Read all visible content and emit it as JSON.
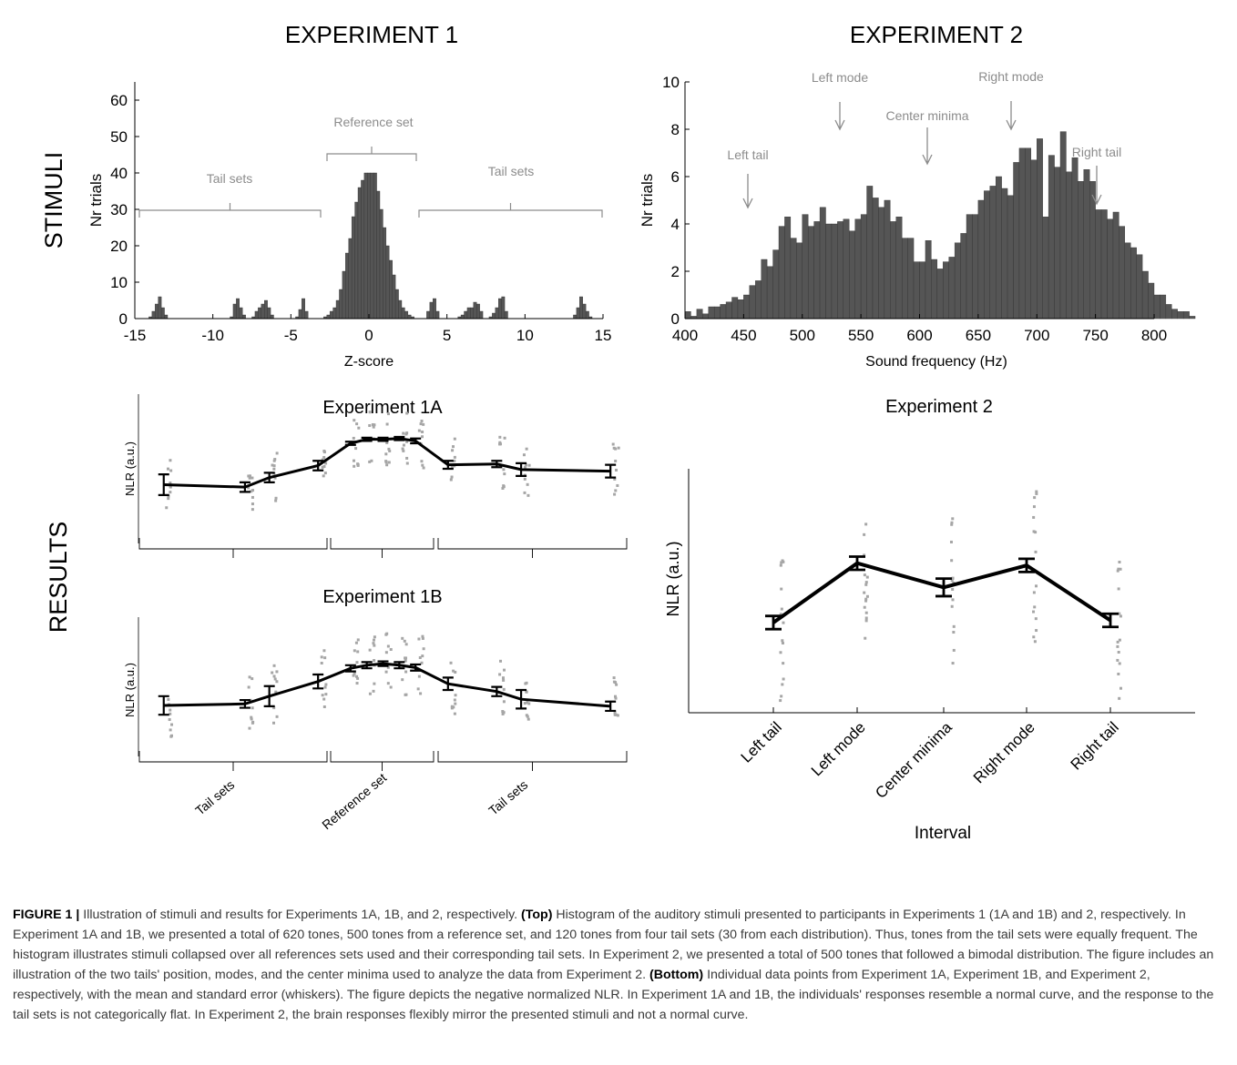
{
  "figure": {
    "exp1_title": "EXPERIMENT 1",
    "exp2_title": "EXPERIMENT 2",
    "row_stimuli": "STIMULI",
    "row_results": "RESULTS"
  },
  "caption": {
    "label": "FIGURE 1 |",
    "p1": " Illustration of stimuli and results for Experiments 1A, 1B, and 2, respectively. ",
    "top": "(Top)",
    "p2": " Histogram of the auditory stimuli presented to participants in Experiments 1 (1A and 1B) and 2, respectively. In Experiment 1A and 1B, we presented a total of 620 tones, 500 tones from a reference set, and 120 tones from four tail sets (30 from each distribution). Thus, tones from the tail sets were equally frequent. The histogram illustrates stimuli collapsed over all references sets used and their corresponding tail sets. In Experiment 2, we presented a total of 500 tones that followed a bimodal distribution. The figure includes an illustration of the two tails' position, modes, and the center minima used to analyze the data from Experiment 2. ",
    "bottom": "(Bottom)",
    "p3": " Individual data points from Experiment 1A, Experiment 1B, and Experiment 2, respectively, with the mean and standard error (whiskers). The figure depicts the negative normalized NLR. In Experiment 1A and 1B, the individuals' responses resemble a normal curve, and the response to the tail sets is not categorically flat. In Experiment 2, the brain responses flexibly mirror the presented stimuli and not a normal curve."
  },
  "chart_data": [
    {
      "type": "bar",
      "xlabel": "Z-score",
      "ylabel": "Nr trials",
      "xlim": [
        -15,
        15
      ],
      "ylim": [
        0,
        65
      ],
      "xticks": [
        -15,
        -10,
        -5,
        0,
        5,
        10,
        15
      ],
      "yticks": [
        0,
        10,
        20,
        30,
        40,
        50,
        60
      ],
      "annotations": {
        "reference": "Reference set",
        "tails_left": "Tail sets",
        "tails_right": "Tail sets"
      },
      "bin_width": 0.2,
      "bins": [
        [
          -14.0,
          0.5
        ],
        [
          -13.8,
          2
        ],
        [
          -13.6,
          4
        ],
        [
          -13.4,
          6
        ],
        [
          -13.2,
          3
        ],
        [
          -13.0,
          1
        ],
        [
          -8.8,
          0.5
        ],
        [
          -8.6,
          4
        ],
        [
          -8.4,
          5.5
        ],
        [
          -8.2,
          3
        ],
        [
          -8.0,
          1
        ],
        [
          -7.4,
          0.5
        ],
        [
          -7.2,
          2
        ],
        [
          -7.0,
          3
        ],
        [
          -6.8,
          4
        ],
        [
          -6.6,
          5
        ],
        [
          -6.4,
          3
        ],
        [
          -6.2,
          1
        ],
        [
          -4.6,
          0.5
        ],
        [
          -4.4,
          2.5
        ],
        [
          -4.2,
          5.5
        ],
        [
          -4.0,
          2
        ],
        [
          -2.8,
          0.5
        ],
        [
          -2.6,
          1
        ],
        [
          -2.4,
          2
        ],
        [
          -2.2,
          3
        ],
        [
          -2.0,
          5
        ],
        [
          -1.8,
          8
        ],
        [
          -1.6,
          13
        ],
        [
          -1.4,
          18
        ],
        [
          -1.2,
          22
        ],
        [
          -1.0,
          28
        ],
        [
          -0.8,
          32
        ],
        [
          -0.6,
          36
        ],
        [
          -0.4,
          38
        ],
        [
          -0.2,
          40
        ],
        [
          0.0,
          40
        ],
        [
          0.2,
          40
        ],
        [
          0.4,
          40
        ],
        [
          0.6,
          35
        ],
        [
          0.8,
          30
        ],
        [
          1.0,
          25
        ],
        [
          1.2,
          20
        ],
        [
          1.4,
          16
        ],
        [
          1.6,
          12
        ],
        [
          1.8,
          8
        ],
        [
          2.0,
          5
        ],
        [
          2.2,
          3
        ],
        [
          2.4,
          2
        ],
        [
          2.6,
          1
        ],
        [
          2.8,
          0.5
        ],
        [
          3.8,
          2
        ],
        [
          4.0,
          4.5
        ],
        [
          4.2,
          5.5
        ],
        [
          4.4,
          2
        ],
        [
          5.8,
          0.5
        ],
        [
          6.0,
          1
        ],
        [
          6.2,
          2
        ],
        [
          6.4,
          3
        ],
        [
          6.6,
          3
        ],
        [
          6.8,
          4.5
        ],
        [
          7.0,
          4
        ],
        [
          7.2,
          2
        ],
        [
          7.8,
          0.5
        ],
        [
          8.0,
          1.5
        ],
        [
          8.2,
          3
        ],
        [
          8.4,
          5.5
        ],
        [
          8.6,
          6
        ],
        [
          8.8,
          2
        ],
        [
          13.2,
          1
        ],
        [
          13.4,
          3
        ],
        [
          13.6,
          6
        ],
        [
          13.8,
          4
        ],
        [
          14.0,
          2
        ],
        [
          14.2,
          0.5
        ]
      ]
    },
    {
      "type": "bar",
      "xlabel": "Sound frequency (Hz)",
      "ylabel": "Nr trials",
      "xlim": [
        400,
        800
      ],
      "ylim": [
        0,
        10
      ],
      "xticks": [
        400,
        450,
        500,
        550,
        600,
        650,
        700,
        750,
        800
      ],
      "yticks": [
        0,
        2,
        4,
        6,
        8,
        10
      ],
      "bin_width": 5,
      "bin_start": 402.5,
      "values": [
        0.3,
        0.1,
        0.4,
        0.2,
        0.5,
        0.5,
        0.6,
        0.7,
        0.9,
        0.8,
        1.0,
        1.4,
        1.6,
        2.5,
        2.2,
        2.9,
        3.9,
        4.3,
        3.4,
        3.2,
        4.4,
        3.9,
        4.1,
        4.7,
        4.0,
        4.0,
        4.1,
        4.2,
        3.7,
        4.2,
        4.4,
        5.6,
        5.1,
        4.7,
        5.0,
        4.1,
        4.3,
        3.4,
        3.4,
        2.4,
        2.4,
        3.3,
        2.5,
        2.1,
        2.4,
        2.6,
        3.2,
        3.6,
        4.4,
        4.4,
        5.0,
        5.4,
        5.6,
        6.0,
        5.5,
        5.2,
        6.6,
        7.2,
        7.2,
        6.7,
        7.6,
        4.3,
        6.9,
        6.4,
        7.9,
        6.2,
        6.8,
        5.8,
        6.3,
        5.8,
        4.6,
        4.6,
        4.2,
        4.5,
        3.9,
        3.2,
        3.0,
        2.7,
        2.0,
        1.5,
        1.0,
        1.0,
        0.6,
        0.4,
        0.3,
        0.3,
        0.1,
        0.0,
        0.0,
        0.0,
        0.0,
        0.0,
        0.0,
        0.0,
        0.0,
        0.0,
        0.0,
        0.2
      ],
      "annotations": [
        "Left tail",
        "Left mode",
        "Center minima",
        "Right mode",
        "Right tail"
      ]
    },
    {
      "type": "line",
      "title": "Experiment 1A",
      "ylabel": "NLR (a.u.)",
      "x": [
        -13.5,
        -8.5,
        -7.0,
        -4.0,
        -2.0,
        -1.0,
        0.0,
        1.0,
        2.0,
        4.0,
        7.0,
        8.5,
        14.0
      ],
      "y": [
        0.0,
        -0.03,
        0.09,
        0.24,
        0.52,
        0.57,
        0.57,
        0.58,
        0.55,
        0.25,
        0.26,
        0.19,
        0.17
      ],
      "err": [
        0.13,
        0.06,
        0.06,
        0.06,
        0.02,
        0.02,
        0.02,
        0.02,
        0.03,
        0.05,
        0.04,
        0.08,
        0.08
      ],
      "ylim": [
        -0.6,
        1.0
      ]
    },
    {
      "type": "line",
      "title": "Experiment 1B",
      "ylabel": "NLR (a.u.)",
      "x": [
        -13.5,
        -8.5,
        -7.0,
        -4.0,
        -2.0,
        -1.0,
        0.0,
        1.0,
        2.0,
        4.0,
        7.0,
        8.5,
        14.0
      ],
      "y": [
        0.0,
        0.02,
        0.12,
        0.31,
        0.48,
        0.52,
        0.54,
        0.52,
        0.49,
        0.28,
        0.18,
        0.08,
        -0.01
      ],
      "err": [
        0.12,
        0.05,
        0.13,
        0.09,
        0.04,
        0.04,
        0.03,
        0.04,
        0.04,
        0.08,
        0.06,
        0.12,
        0.06
      ],
      "ylim": [
        -0.6,
        1.0
      ],
      "categories_axis": [
        "Tail sets",
        "Reference set",
        "Tail sets"
      ]
    },
    {
      "type": "line",
      "title": "Experiment 2",
      "xlabel": "Interval",
      "ylabel": "NLR (a.u.)",
      "categories": [
        "Left tail",
        "Left mode",
        "Center minima",
        "Right mode",
        "Right tail"
      ],
      "values": [
        0.41,
        0.68,
        0.57,
        0.67,
        0.42
      ],
      "err": [
        0.03,
        0.03,
        0.04,
        0.03,
        0.03
      ],
      "ylim": [
        0.0,
        1.13
      ]
    }
  ]
}
